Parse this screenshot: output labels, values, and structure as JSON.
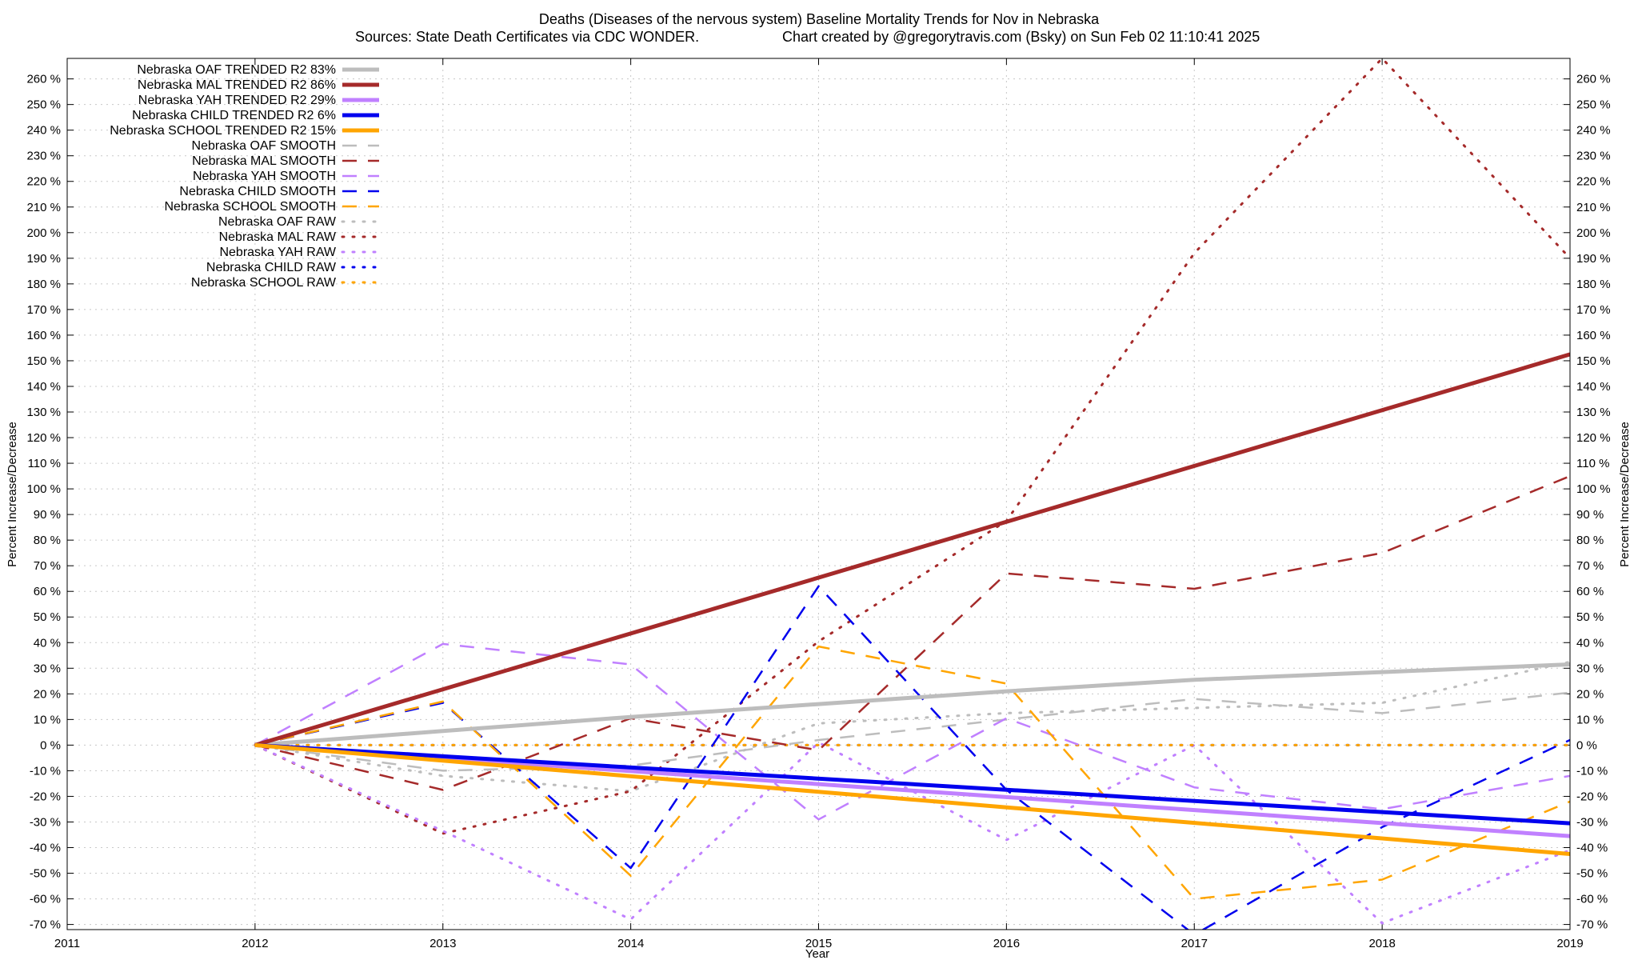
{
  "chart_data": {
    "type": "line",
    "title": "Deaths (Diseases of the nervous system)  Baseline Mortality Trends for Nov in Nebraska",
    "subtitle_left": "Sources: State Death Certificates via CDC WONDER.",
    "subtitle_right": "Chart created by @gregorytravis.com (Bsky) on Sun Feb 02 11:10:41 2025",
    "xlabel": "Year",
    "ylabel": "Percent Increase/Decrease",
    "xlim": [
      2011,
      2019
    ],
    "ylim": [
      -72,
      268
    ],
    "x_ticks": [
      "2011",
      "2012",
      "2013",
      "2014",
      "2015",
      "2016",
      "2017",
      "2018",
      "2019"
    ],
    "y_ticks": [
      {
        "value": -70,
        "label": "-70 %"
      },
      {
        "value": -60,
        "label": "-60 %"
      },
      {
        "value": -50,
        "label": "-50 %"
      },
      {
        "value": -40,
        "label": "-40 %"
      },
      {
        "value": -30,
        "label": "-30 %"
      },
      {
        "value": -20,
        "label": "-20 %"
      },
      {
        "value": -10,
        "label": "-10 %"
      },
      {
        "value": 0,
        "label": "0 %"
      },
      {
        "value": 10,
        "label": "10 %"
      },
      {
        "value": 20,
        "label": "20 %"
      },
      {
        "value": 30,
        "label": "30 %"
      },
      {
        "value": 40,
        "label": "40 %"
      },
      {
        "value": 50,
        "label": "50 %"
      },
      {
        "value": 60,
        "label": "60 %"
      },
      {
        "value": 70,
        "label": "70 %"
      },
      {
        "value": 80,
        "label": "80 %"
      },
      {
        "value": 90,
        "label": "90 %"
      },
      {
        "value": 100,
        "label": "100 %"
      },
      {
        "value": 110,
        "label": "110 %"
      },
      {
        "value": 120,
        "label": "120 %"
      },
      {
        "value": 130,
        "label": "130 %"
      },
      {
        "value": 140,
        "label": "140 %"
      },
      {
        "value": 150,
        "label": "150 %"
      },
      {
        "value": 160,
        "label": "160 %"
      },
      {
        "value": 170,
        "label": "170 %"
      },
      {
        "value": 180,
        "label": "180 %"
      },
      {
        "value": 190,
        "label": "190 %"
      },
      {
        "value": 200,
        "label": "200 %"
      },
      {
        "value": 210,
        "label": "210 %"
      },
      {
        "value": 220,
        "label": "220 %"
      },
      {
        "value": 230,
        "label": "230 %"
      },
      {
        "value": 240,
        "label": "240 %"
      },
      {
        "value": 250,
        "label": "250 %"
      },
      {
        "value": 260,
        "label": "260 %"
      }
    ],
    "grid": true,
    "legend_position": "top-left",
    "colors": {
      "oaf": "#bdbdbd",
      "mal": "#a52a2a",
      "yah": "#c080ff",
      "child": "#0000ee",
      "school": "#ffa500"
    },
    "series": [
      {
        "name": "Nebraska OAF TRENDED R2  83%",
        "group": "oaf",
        "style": "trend",
        "x": [
          2012,
          2013,
          2014,
          2015,
          2016,
          2017,
          2018,
          2019
        ],
        "y": [
          0,
          5.5,
          11,
          16,
          21,
          25.5,
          28.5,
          31.5
        ]
      },
      {
        "name": "Nebraska MAL TRENDED R2  86%",
        "group": "mal",
        "style": "trend",
        "x": [
          2012,
          2019
        ],
        "y": [
          0,
          152.5
        ]
      },
      {
        "name": "Nebraska YAH TRENDED R2  29%",
        "group": "yah",
        "style": "trend",
        "x": [
          2012,
          2019
        ],
        "y": [
          0,
          -35.5
        ]
      },
      {
        "name": "Nebraska CHILD TRENDED R2   6%",
        "group": "child",
        "style": "trend",
        "x": [
          2012,
          2019
        ],
        "y": [
          0,
          -30.5
        ]
      },
      {
        "name": "Nebraska SCHOOL TRENDED R2  15%",
        "group": "school",
        "style": "trend",
        "x": [
          2012,
          2019
        ],
        "y": [
          0,
          -42.5
        ]
      },
      {
        "name": "Nebraska OAF SMOOTH",
        "group": "oaf",
        "style": "smooth",
        "x": [
          2012,
          2013,
          2014,
          2015,
          2016,
          2017,
          2018,
          2019
        ],
        "y": [
          0,
          -10,
          -8,
          2,
          10,
          18,
          12.5,
          20.5
        ]
      },
      {
        "name": "Nebraska MAL SMOOTH",
        "group": "mal",
        "style": "smooth",
        "x": [
          2012,
          2013,
          2014,
          2015,
          2016,
          2017,
          2018,
          2019
        ],
        "y": [
          0,
          -17.5,
          10.5,
          -2,
          67,
          61,
          75,
          105
        ]
      },
      {
        "name": "Nebraska YAH SMOOTH",
        "group": "yah",
        "style": "smooth",
        "x": [
          2012,
          2013,
          2014,
          2015,
          2016,
          2017,
          2018,
          2019
        ],
        "y": [
          0,
          39.5,
          31.5,
          -29,
          10.5,
          -16.5,
          -25,
          -12
        ]
      },
      {
        "name": "Nebraska CHILD SMOOTH",
        "group": "child",
        "style": "smooth",
        "x": [
          2012,
          2013,
          2014,
          2015,
          2016,
          2017,
          2018,
          2019
        ],
        "y": [
          0,
          16.5,
          -48,
          62,
          -17.5,
          -74,
          -32,
          2
        ]
      },
      {
        "name": "Nebraska SCHOOL SMOOTH",
        "group": "school",
        "style": "smooth",
        "x": [
          2012,
          2013,
          2014,
          2015,
          2016,
          2017,
          2018,
          2019
        ],
        "y": [
          0,
          17,
          -51,
          38.5,
          24,
          -60,
          -52.5,
          -22
        ]
      },
      {
        "name": "Nebraska OAF RAW",
        "group": "oaf",
        "style": "raw",
        "x": [
          2012,
          2013,
          2014,
          2015,
          2016,
          2017,
          2018,
          2019
        ],
        "y": [
          0,
          -12,
          -18,
          8.5,
          12.5,
          14.5,
          16.5,
          32.5
        ]
      },
      {
        "name": "Nebraska MAL RAW",
        "group": "mal",
        "style": "raw",
        "x": [
          2012,
          2013,
          2014,
          2015,
          2016,
          2017,
          2018,
          2019
        ],
        "y": [
          0,
          -34.5,
          -18,
          40.5,
          87.5,
          192,
          268,
          190
        ]
      },
      {
        "name": "Nebraska YAH RAW",
        "group": "yah",
        "style": "raw",
        "x": [
          2012,
          2013,
          2014,
          2015,
          2016,
          2017,
          2018,
          2019
        ],
        "y": [
          0,
          -33.5,
          -68,
          1,
          -37,
          0,
          -69.5,
          -41
        ]
      },
      {
        "name": "Nebraska CHILD RAW",
        "group": "child",
        "style": "raw",
        "x": [
          2012,
          2013,
          2014,
          2015,
          2016,
          2017,
          2018,
          2019
        ],
        "y": [
          0,
          0,
          0,
          0,
          0,
          0,
          0,
          0
        ]
      },
      {
        "name": "Nebraska SCHOOL RAW",
        "group": "school",
        "style": "raw",
        "x": [
          2012,
          2013,
          2014,
          2015,
          2016,
          2017,
          2018,
          2019
        ],
        "y": [
          0,
          0,
          0,
          0,
          0,
          0,
          0,
          0
        ]
      }
    ]
  }
}
